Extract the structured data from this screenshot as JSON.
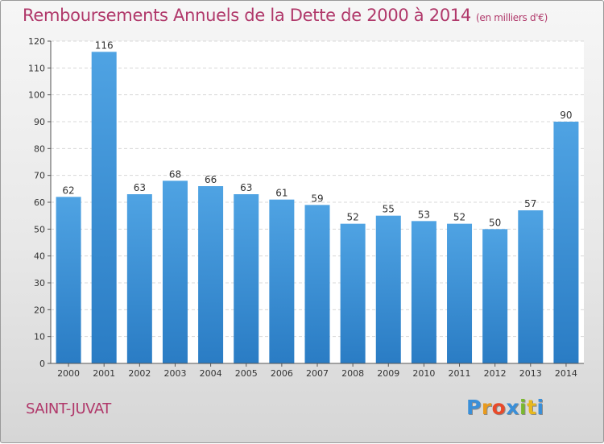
{
  "header": {
    "title": "Remboursements Annuels de la Dette de 2000 à 2014",
    "unit": "(en milliers d'€)"
  },
  "footer": {
    "commune": "SAINT-JUVAT",
    "logo_letters": [
      "P",
      "r",
      "o",
      "x",
      "i",
      "t",
      "i"
    ],
    "logo_colors": [
      "#3a8fd8",
      "#e89a1e",
      "#e84a2a",
      "#3a8fd8",
      "#7ab82e",
      "#e8b81e",
      "#3a8fd8"
    ]
  },
  "chart_data": {
    "type": "bar",
    "title": "Remboursements Annuels de la Dette de 2000 à 2014",
    "subtitle": "(en milliers d'€)",
    "xlabel": "",
    "ylabel": "",
    "categories": [
      "2000",
      "2001",
      "2002",
      "2003",
      "2004",
      "2005",
      "2006",
      "2007",
      "2008",
      "2009",
      "2010",
      "2011",
      "2012",
      "2013",
      "2014"
    ],
    "values": [
      62,
      116,
      63,
      68,
      66,
      63,
      61,
      59,
      52,
      55,
      53,
      52,
      50,
      57,
      90
    ],
    "ylim": [
      0,
      120
    ],
    "yticks": [
      0,
      10,
      20,
      30,
      40,
      50,
      60,
      70,
      80,
      90,
      100,
      110,
      120
    ],
    "grid": true,
    "bar_color": "#4fa3e3",
    "bar_color_dark": "#2a7cc4"
  }
}
